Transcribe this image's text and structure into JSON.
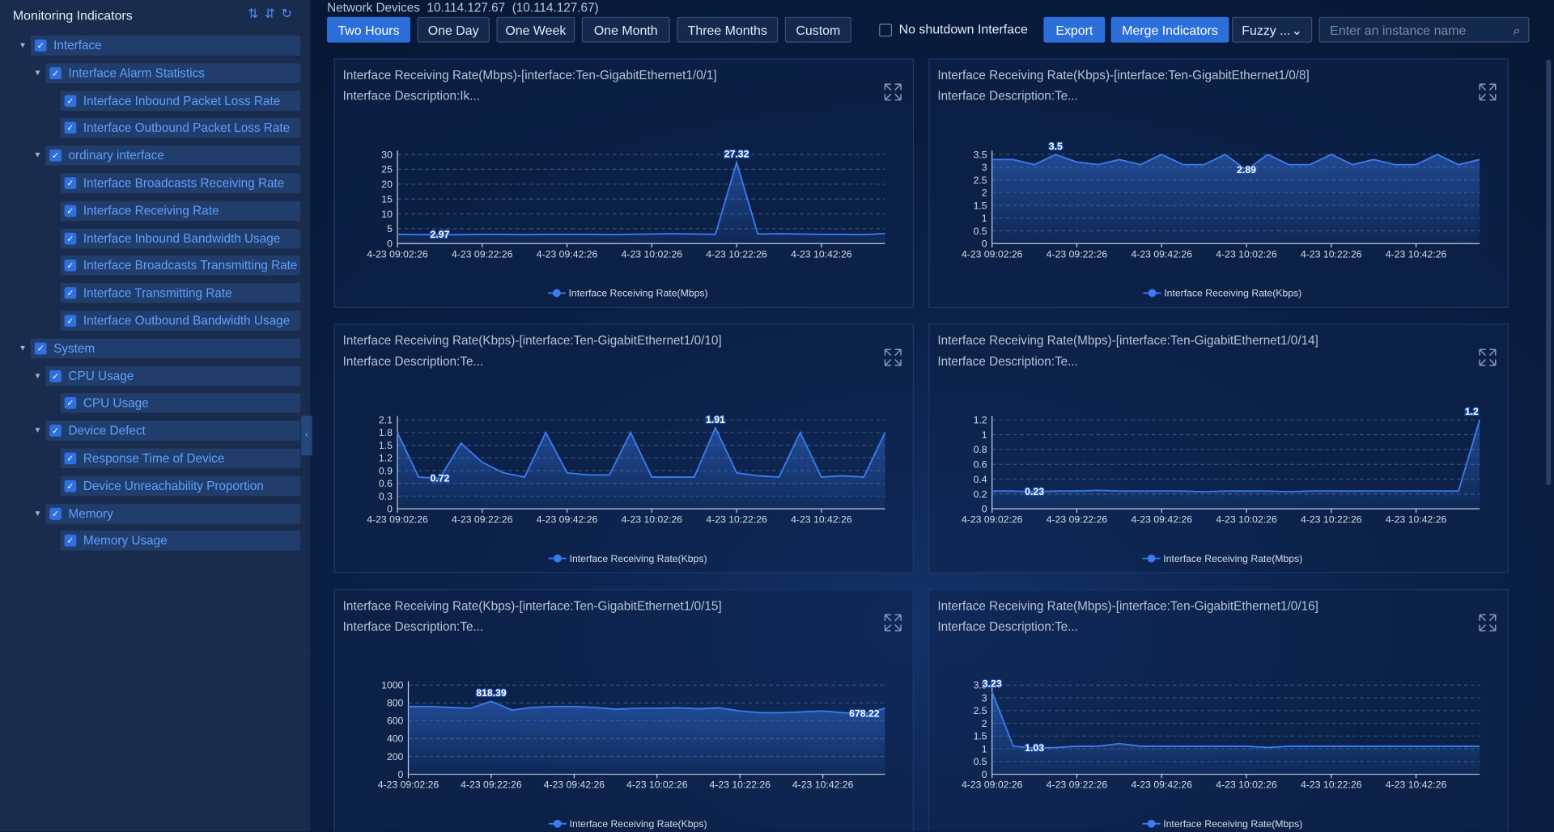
{
  "sidebar": {
    "title": "Monitoring Indicators",
    "tree": [
      {
        "label": "Interface",
        "level": 0,
        "expanded": true
      },
      {
        "label": "Interface Alarm Statistics",
        "level": 1,
        "expanded": true
      },
      {
        "label": "Interface Inbound Packet Loss Rate",
        "level": 2
      },
      {
        "label": "Interface Outbound Packet Loss Rate",
        "level": 2
      },
      {
        "label": "ordinary interface",
        "level": 1,
        "expanded": true
      },
      {
        "label": "Interface Broadcasts Receiving Rate",
        "level": 2
      },
      {
        "label": "Interface Receiving Rate",
        "level": 2
      },
      {
        "label": "Interface Inbound Bandwidth Usage",
        "level": 2
      },
      {
        "label": "Interface Broadcasts Transmitting Rate",
        "level": 2
      },
      {
        "label": "Interface Transmitting Rate",
        "level": 2
      },
      {
        "label": "Interface Outbound Bandwidth Usage",
        "level": 2
      },
      {
        "label": "System",
        "level": 0,
        "expanded": true
      },
      {
        "label": "CPU Usage",
        "level": 1,
        "expanded": true
      },
      {
        "label": "CPU Usage",
        "level": 2
      },
      {
        "label": "Device Defect",
        "level": 1,
        "expanded": true
      },
      {
        "label": "Response Time of Device",
        "level": 2
      },
      {
        "label": "Device Unreachability Proportion",
        "level": 2
      },
      {
        "label": "Memory",
        "level": 1,
        "expanded": true
      },
      {
        "label": "Memory Usage",
        "level": 2
      }
    ]
  },
  "toolbar": {
    "network_label": "Network Devices",
    "ip": "10.114.127.67",
    "ip_paren": "(10.114.127.67)",
    "ranges": [
      "Two Hours",
      "One Day",
      "One Week",
      "One Month",
      "Three Months",
      "Custom"
    ],
    "active_range": 0,
    "checkbox_label": "No shutdown Interface",
    "export": "Export",
    "merge": "Merge Indicators",
    "fuzzy": "Fuzzy ...",
    "search_placeholder": "Enter an instance name"
  },
  "panels": [
    {
      "title": "Interface Receiving Rate(Mbps)-[interface:Ten-GigabitEthernet1/0/1]",
      "description": "Interface Description:Ik...",
      "chart": {
        "type": "area",
        "series_name": "Interface Receiving Rate(Mbps)",
        "color": "#3b7cf0",
        "categories": [
          "4-23 09:02:26",
          null,
          null,
          null,
          "4-23 09:22:26",
          null,
          null,
          null,
          "4-23 09:42:26",
          null,
          null,
          null,
          "4-23 10:02:26",
          null,
          null,
          null,
          "4-23 10:22:26",
          null,
          null,
          null,
          "4-23 10:42:26",
          null,
          null,
          null
        ],
        "values": [
          3.1,
          3.0,
          2.97,
          3.0,
          3.1,
          3.1,
          3.0,
          3.1,
          3.1,
          3.1,
          3.0,
          3.1,
          3.2,
          3.3,
          3.2,
          3.1,
          27.32,
          3.2,
          3.3,
          3.2,
          3.1,
          3.1,
          3.0,
          3.4
        ],
        "ylim": [
          0,
          30
        ],
        "yticks": [
          0,
          5,
          10,
          15,
          20,
          25,
          30
        ]
      }
    },
    {
      "title": "Interface Receiving Rate(Kbps)-[interface:Ten-GigabitEthernet1/0/8]",
      "description": "Interface Description:Te...",
      "chart": {
        "type": "area",
        "series_name": "Interface Receiving Rate(Kbps)",
        "color": "#3b7cf0",
        "categories": [
          "4-23 09:02:26",
          null,
          null,
          null,
          "4-23 09:22:26",
          null,
          null,
          null,
          "4-23 09:42:26",
          null,
          null,
          null,
          "4-23 10:02:26",
          null,
          null,
          null,
          "4-23 10:22:26",
          null,
          null,
          null,
          "4-23 10:42:26",
          null,
          null,
          null
        ],
        "values": [
          3.3,
          3.3,
          3.1,
          3.5,
          3.2,
          3.1,
          3.3,
          3.1,
          3.5,
          3.1,
          3.1,
          3.5,
          2.89,
          3.5,
          3.1,
          3.1,
          3.5,
          3.1,
          3.3,
          3.1,
          3.1,
          3.5,
          3.1,
          3.3
        ],
        "ylim": [
          0,
          3.5
        ],
        "yticks": [
          0,
          0.5,
          1,
          1.5,
          2,
          2.5,
          3,
          3.5
        ]
      }
    },
    {
      "title": "Interface Receiving Rate(Kbps)-[interface:Ten-GigabitEthernet1/0/10]",
      "description": "Interface Description:Te...",
      "chart": {
        "type": "area",
        "series_name": "Interface Receiving Rate(Kbps)",
        "color": "#3b7cf0",
        "categories": [
          "4-23 09:02:26",
          null,
          null,
          null,
          "4-23 09:22:26",
          null,
          null,
          null,
          "4-23 09:42:26",
          null,
          null,
          null,
          "4-23 10:02:26",
          null,
          null,
          null,
          "4-23 10:22:26",
          null,
          null,
          null,
          "4-23 10:42:26",
          null,
          null,
          null
        ],
        "values": [
          1.8,
          0.75,
          0.72,
          1.55,
          1.1,
          0.85,
          0.75,
          1.8,
          0.85,
          0.8,
          0.8,
          1.8,
          0.75,
          0.75,
          0.75,
          1.91,
          0.85,
          0.78,
          0.75,
          1.8,
          0.75,
          0.78,
          0.75,
          1.8
        ],
        "ylim": [
          0,
          2.1
        ],
        "yticks": [
          0,
          0.3,
          0.6,
          0.9,
          1.2,
          1.5,
          1.8,
          2.1
        ]
      }
    },
    {
      "title": "Interface Receiving Rate(Mbps)-[interface:Ten-GigabitEthernet1/0/14]",
      "description": "Interface Description:Te...",
      "chart": {
        "type": "area",
        "series_name": "Interface Receiving Rate(Mbps)",
        "color": "#3b7cf0",
        "categories": [
          "4-23 09:02:26",
          null,
          null,
          null,
          "4-23 09:22:26",
          null,
          null,
          null,
          "4-23 09:42:26",
          null,
          null,
          null,
          "4-23 10:02:26",
          null,
          null,
          null,
          "4-23 10:22:26",
          null,
          null,
          null,
          "4-23 10:42:26",
          null,
          null,
          null
        ],
        "values": [
          0.24,
          0.24,
          0.23,
          0.24,
          0.24,
          0.25,
          0.24,
          0.24,
          0.24,
          0.24,
          0.23,
          0.24,
          0.24,
          0.24,
          0.23,
          0.24,
          0.24,
          0.24,
          0.24,
          0.24,
          0.24,
          0.24,
          0.24,
          1.2
        ],
        "ylim": [
          0,
          1.2
        ],
        "yticks": [
          0,
          0.2,
          0.4,
          0.6,
          0.8,
          1,
          1.2
        ]
      }
    },
    {
      "title": "Interface Receiving Rate(Kbps)-[interface:Ten-GigabitEthernet1/0/15]",
      "description": "Interface Description:Te...",
      "chart": {
        "type": "area",
        "series_name": "Interface Receiving Rate(Kbps)",
        "color": "#3b7cf0",
        "categories": [
          "4-23 09:02:26",
          null,
          null,
          null,
          "4-23 09:22:26",
          null,
          null,
          null,
          "4-23 09:42:26",
          null,
          null,
          null,
          "4-23 10:02:26",
          null,
          null,
          null,
          "4-23 10:22:26",
          null,
          null,
          null,
          "4-23 10:42:26",
          null,
          null,
          null
        ],
        "values": [
          760,
          760,
          750,
          740,
          818.39,
          720,
          750,
          760,
          760,
          750,
          730,
          740,
          740,
          745,
          735,
          745,
          710,
          690,
          690,
          700,
          710,
          690,
          678.22,
          740
        ],
        "ylim": [
          0,
          1000
        ],
        "yticks": [
          0,
          200,
          400,
          600,
          800,
          1000
        ]
      }
    },
    {
      "title": "Interface Receiving Rate(Mbps)-[interface:Ten-GigabitEthernet1/0/16]",
      "description": "Interface Description:Te...",
      "chart": {
        "type": "area",
        "series_name": "Interface Receiving Rate(Mbps)",
        "color": "#3b7cf0",
        "categories": [
          "4-23 09:02:26",
          null,
          null,
          null,
          "4-23 09:22:26",
          null,
          null,
          null,
          "4-23 09:42:26",
          null,
          null,
          null,
          "4-23 10:02:26",
          null,
          null,
          null,
          "4-23 10:22:26",
          null,
          null,
          null,
          "4-23 10:42:26",
          null,
          null,
          null
        ],
        "values": [
          3.23,
          1.1,
          1.03,
          1.05,
          1.1,
          1.1,
          1.2,
          1.1,
          1.1,
          1.1,
          1.1,
          1.1,
          1.1,
          1.05,
          1.1,
          1.1,
          1.1,
          1.1,
          1.1,
          1.1,
          1.1,
          1.1,
          1.1,
          1.1
        ],
        "ylim": [
          0,
          3.5
        ],
        "yticks": [
          0,
          0.5,
          1,
          1.5,
          2,
          2.5,
          3,
          3.5
        ]
      }
    }
  ]
}
